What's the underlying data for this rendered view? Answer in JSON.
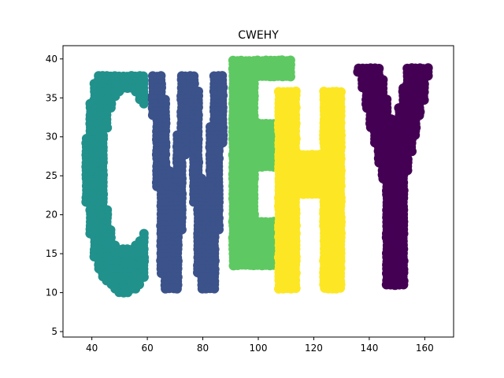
{
  "chart_data": {
    "type": "scatter",
    "title": "CWEHY",
    "xlabel": "",
    "ylabel": "",
    "xlim": [
      29.6,
      170.4
    ],
    "ylim": [
      4.3,
      41.7
    ],
    "xticks": [
      40,
      60,
      80,
      100,
      120,
      140,
      160
    ],
    "yticks": [
      5,
      10,
      15,
      20,
      25,
      30,
      35,
      40
    ],
    "grid": false,
    "series": [
      {
        "color": "#21918c",
        "glyph": "C",
        "bbox_data": {
          "x": [
            36,
            62
          ],
          "y": [
            6,
            38
          ]
        },
        "approx_points": 450
      },
      {
        "color": "#3b528b",
        "glyph": "W",
        "bbox_data": {
          "x": [
            60,
            90
          ],
          "y": [
            6,
            38
          ]
        },
        "approx_points": 520
      },
      {
        "color": "#5ec962",
        "glyph": "E",
        "bbox_data": {
          "x": [
            86,
            117
          ],
          "y": [
            9,
            40
          ]
        },
        "approx_points": 470
      },
      {
        "color": "#fde725",
        "glyph": "H",
        "bbox_data": {
          "x": [
            104,
            134
          ],
          "y": [
            6,
            36
          ]
        },
        "approx_points": 480
      },
      {
        "color": "#440154",
        "glyph": "Y",
        "bbox_data": {
          "x": [
            134,
            164
          ],
          "y": [
            6,
            39
          ]
        },
        "approx_points": 520
      }
    ]
  }
}
